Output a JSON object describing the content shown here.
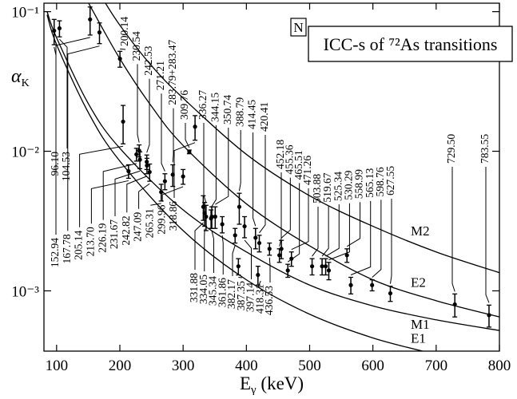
{
  "chart_data": {
    "type": "scatter",
    "title": "ICC-s of ⁷²As transitions",
    "tag": "N",
    "xlabel": {
      "main": "E",
      "sub": "γ",
      "rest": " (keV)"
    },
    "ylabel": {
      "main": "α",
      "sub": "K"
    },
    "xlim": [
      80,
      800
    ],
    "xticks": [
      100,
      200,
      300,
      400,
      500,
      600,
      700,
      800
    ],
    "ylim": [
      0.00037,
      0.115
    ],
    "yticks": [
      {
        "value": 0.1,
        "label": "10⁻¹"
      },
      {
        "value": 0.01,
        "label": "10⁻²"
      },
      {
        "value": 0.001,
        "label": "10⁻³"
      }
    ],
    "log_y": true,
    "points": {
      "color": "#000000",
      "x": [
        96.1,
        104.53,
        152.94,
        167.78,
        200.14,
        205.14,
        213.7,
        226.19,
        230.54,
        231.67,
        242.53,
        242.82,
        247.09,
        265.31,
        271.21,
        283.63,
        299.96,
        309.76,
        318.86,
        331.88,
        334.05,
        336.27,
        344.15,
        345.34,
        350.74,
        361.86,
        382.17,
        387.35,
        388.79,
        397.14,
        414.45,
        418.31,
        420.41,
        436.53,
        452.18,
        455.36,
        465.51,
        471.26,
        503.88,
        519.67,
        525.34,
        530.29,
        558.99,
        565.13,
        598.76,
        627.55,
        729.5,
        783.55
      ],
      "labels": [
        "96.10",
        "104.53",
        "152.94",
        "167.78",
        "200.14",
        "205.14",
        "213.70",
        "226.19",
        "230.54",
        "231.67",
        "242.53",
        "242.82",
        "247.09",
        "265.31",
        "271.21",
        "283.79+283.47",
        "299.96",
        "309.76",
        "318.86",
        "331.88",
        "334.05",
        "336.27",
        "344.15",
        "345.34",
        "350.74",
        "361.86",
        "382.17",
        "387.35",
        "388.79",
        "397.14",
        "414.45",
        "418.31",
        "420.41",
        "436.53",
        "452.18",
        "455.36",
        "465.51",
        "471.26",
        "503.88",
        "519.67",
        "525.34",
        "530.29",
        "558.99",
        "565.13",
        "598.76",
        "627.55",
        "729.50",
        "783.55"
      ],
      "values": [
        0.073,
        0.076,
        0.088,
        0.071,
        0.046,
        0.0163,
        0.0072,
        0.0095,
        0.0101,
        0.0087,
        0.0084,
        0.0079,
        0.0071,
        0.0051,
        0.0061,
        0.0068,
        0.0066,
        0.0099,
        0.015,
        0.004,
        0.0036,
        0.0034,
        0.0033,
        0.0034,
        0.0034,
        0.003,
        0.0025,
        0.0015,
        0.004,
        0.0029,
        0.0024,
        0.0013,
        0.0022,
        0.002,
        0.0018,
        0.002,
        0.0014,
        0.0017,
        0.0015,
        0.0015,
        0.0015,
        0.0014,
        0.0018,
        0.0011,
        0.0011,
        0.00096,
        0.0008,
        0.00067
      ],
      "errors": [
        0.015,
        0.01,
        0.02,
        0.012,
        0.006,
        0.005,
        0.0008,
        0.001,
        0.001,
        0.0012,
        0.001,
        0.001,
        0.001,
        0.0007,
        0.0008,
        0.0012,
        0.0008,
        0.0003,
        0.003,
        0.0008,
        0.0007,
        0.0007,
        0.0005,
        0.0006,
        0.0006,
        0.0004,
        0.0003,
        0.0002,
        0.001,
        0.0005,
        0.0004,
        0.0002,
        0.0003,
        0.0002,
        0.0002,
        0.0003,
        0.00015,
        0.0002,
        0.0002,
        0.0002,
        0.0002,
        0.0002,
        0.0002,
        0.00015,
        0.0001,
        0.00012,
        0.00015,
        0.00012
      ]
    },
    "series": [
      {
        "name": "M2",
        "color": "#000000",
        "x": [
          170,
          200,
          250,
          300,
          400,
          500,
          600,
          700,
          800
        ],
        "values": [
          0.13,
          0.08,
          0.041,
          0.024,
          0.0095,
          0.0048,
          0.0029,
          0.0019,
          0.00135
        ]
      },
      {
        "name": "E2",
        "color": "#000000",
        "x": [
          145,
          153,
          200,
          250,
          300,
          400,
          500,
          600,
          700,
          800
        ],
        "values": [
          0.13,
          0.11,
          0.046,
          0.021,
          0.011,
          0.0042,
          0.0021,
          0.0012,
          0.00085,
          0.00065
        ]
      },
      {
        "name": "M1",
        "color": "#000000",
        "x": [
          85,
          100,
          150,
          200,
          300,
          400,
          500,
          600,
          700,
          800
        ],
        "values": [
          0.1,
          0.065,
          0.022,
          0.0105,
          0.0038,
          0.0019,
          0.0011,
          0.00078,
          0.00062,
          0.00052
        ]
      },
      {
        "name": "E1",
        "color": "#000000",
        "x": [
          85,
          100,
          150,
          200,
          300,
          400,
          500,
          600,
          700
        ],
        "values": [
          0.095,
          0.058,
          0.019,
          0.0085,
          0.0027,
          0.0012,
          0.00068,
          0.00046,
          0.00035
        ]
      }
    ]
  }
}
